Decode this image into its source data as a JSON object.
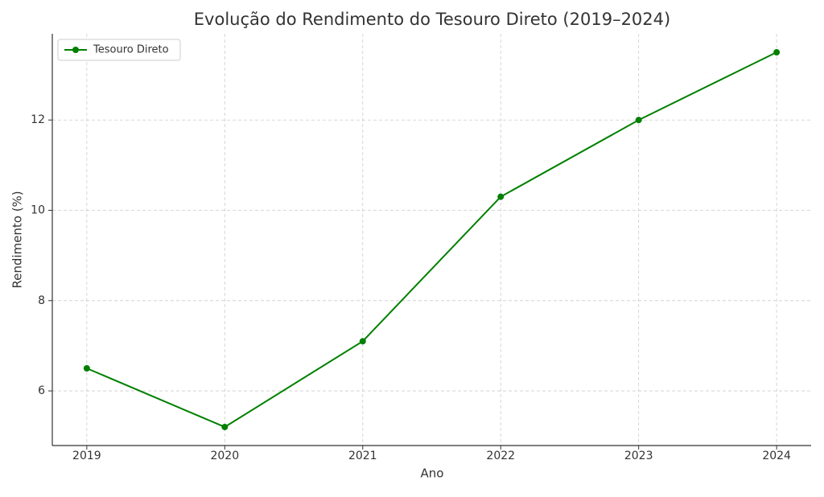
{
  "chart_data": {
    "type": "line",
    "title": "Evolução do Rendimento do Tesouro Direto (2019–2024)",
    "x_label": "Ano",
    "y_label": "Rendimento (%)",
    "x": [
      2019,
      2020,
      2021,
      2022,
      2023,
      2024
    ],
    "series": [
      {
        "name": "Tesouro Direto",
        "color": "#008000",
        "values": [
          6.5,
          5.2,
          7.1,
          10.3,
          12.0,
          13.5
        ]
      }
    ],
    "xlim": [
      2018.75,
      2024.25
    ],
    "xticks": [
      2019,
      2020,
      2021,
      2022,
      2023,
      2024
    ],
    "ylim": [
      4.79,
      13.91
    ],
    "yticks": [
      6,
      8,
      10,
      12
    ],
    "grid": true,
    "legend": "upper-left",
    "markers": true
  }
}
